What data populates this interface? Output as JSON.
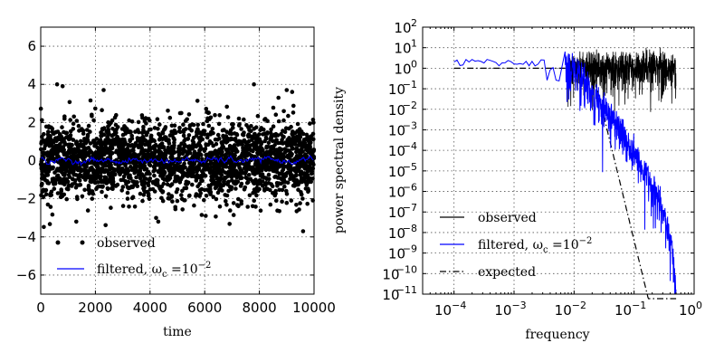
{
  "chart_data": [
    {
      "type": "scatter",
      "xlabel": "time",
      "ylabel": "",
      "xlim": [
        0,
        10000
      ],
      "ylim": [
        -7,
        7
      ],
      "x_ticks": [
        "0",
        "2000",
        "4000",
        "6000",
        "8000",
        "10000"
      ],
      "y_ticks": [
        "−6",
        "−4",
        "−2",
        "0",
        "2",
        "4",
        "6"
      ],
      "grid": true,
      "legend": "lower-left",
      "series": [
        {
          "name": "observed",
          "style": "points",
          "color": "#000000",
          "description_values": {
            "mean": 0,
            "std": 1,
            "n": 10000
          }
        },
        {
          "name": "filtered",
          "name_suffix": "ω_c = 10^−2",
          "style": "line",
          "color": "#0000ff",
          "description_values": {
            "mean": 0,
            "amplitude": 0.15
          }
        }
      ]
    },
    {
      "type": "line",
      "xlabel": "frequency",
      "ylabel": "power spectral density",
      "xscale": "log",
      "yscale": "log",
      "xlim": [
        3e-05,
        1
      ],
      "ylim": [
        1e-11,
        100
      ],
      "x_ticks": [
        "10",
        "10",
        "10",
        "10",
        "10"
      ],
      "x_tick_exps": [
        "-4",
        "-3",
        "-2",
        "-1",
        "0"
      ],
      "y_ticks": [
        "10",
        "10",
        "10",
        "10",
        "10",
        "10",
        "10",
        "10",
        "10",
        "10",
        "10",
        "10",
        "10",
        "10"
      ],
      "y_tick_exps": [
        "2",
        "1",
        "0",
        "-1",
        "-2",
        "-3",
        "-4",
        "-5",
        "-6",
        "-7",
        "-8",
        "-9",
        "-10",
        "-11"
      ],
      "grid": true,
      "legend": "lower-left",
      "series": [
        {
          "name": "observed",
          "color": "#000000",
          "style": "solid"
        },
        {
          "name": "filtered",
          "name_suffix": "ω_c = 10^−2",
          "color": "#0000ff",
          "style": "solid"
        },
        {
          "name": "expected",
          "color": "#000000",
          "style": "dashdot"
        }
      ]
    }
  ],
  "colors": {
    "observed": "#000000",
    "filtered": "#0000ff",
    "expected": "#000000"
  }
}
